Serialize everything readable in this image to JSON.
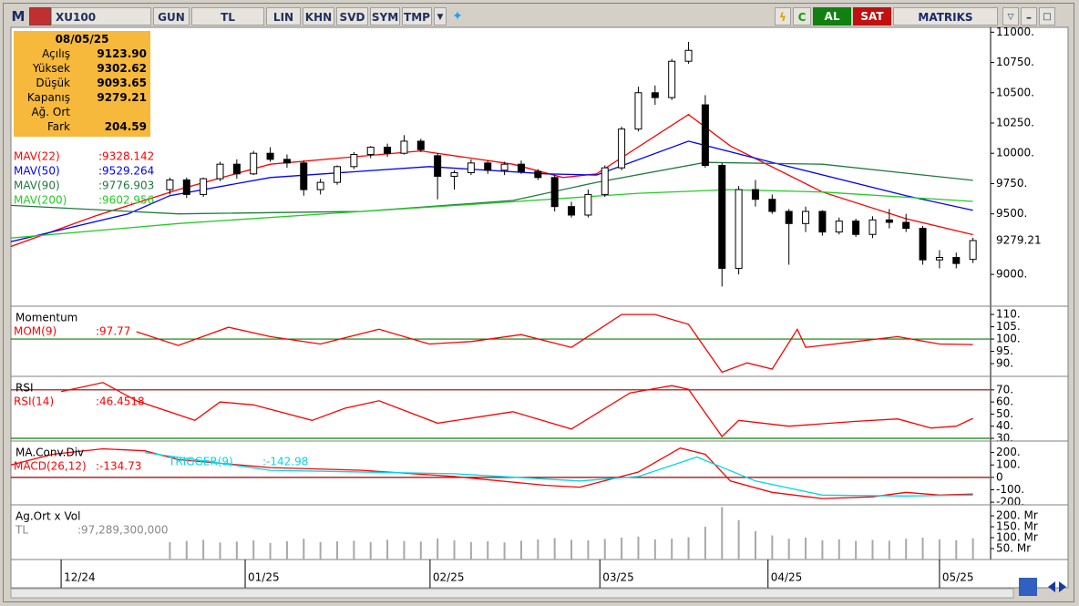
{
  "toolbar": {
    "logo": "M",
    "symbol": "XU100",
    "buttons": [
      "GUN",
      "TL",
      "LIN",
      "KHN",
      "SVD",
      "SYM",
      "TMP"
    ],
    "buy": "AL",
    "sell": "SAT",
    "brand": "MATRIKS"
  },
  "info_box": {
    "date": "08/05/25",
    "rows": [
      {
        "label": "Açılış",
        "value": "9123.90"
      },
      {
        "label": "Yüksek",
        "value": "9302.62"
      },
      {
        "label": "Düşük",
        "value": "9093.65"
      },
      {
        "label": "Kapanış",
        "value": "9279.21"
      },
      {
        "label": "Ağ. Ort"
      },
      {
        "label": "Fark",
        "value": "204.59"
      }
    ]
  },
  "chart_data": [
    {
      "type": "candlestick",
      "xlim": [
        0,
        117
      ],
      "ylim": [
        8745,
        11040
      ],
      "yticks": [
        {
          "value": 9000,
          "label": "9000."
        },
        {
          "value": 9500,
          "label": "9500."
        },
        {
          "value": 9750,
          "label": "9750."
        },
        {
          "value": 10000,
          "label": "10000."
        },
        {
          "value": 10250,
          "label": "10250."
        },
        {
          "value": 10500,
          "label": "10500."
        },
        {
          "value": 10750,
          "label": "10750."
        },
        {
          "value": 11000,
          "label": "11000."
        }
      ],
      "up_color": "#ffffff",
      "down_color": "#000000",
      "x": [
        19,
        21,
        23,
        25,
        27,
        29,
        31,
        33,
        35,
        37,
        39,
        41,
        43,
        45,
        47,
        49,
        51,
        53,
        55,
        57,
        59,
        61,
        63,
        65,
        67,
        69,
        71,
        73,
        75,
        77,
        79,
        81,
        83,
        85,
        87,
        89,
        91,
        93,
        95,
        97,
        99,
        101,
        103,
        105,
        107,
        109,
        111,
        113,
        115
      ],
      "open": [
        9700,
        9780,
        9660,
        9790,
        9910,
        9830,
        10000,
        9950,
        9920,
        9700,
        9760,
        9890,
        9990,
        10050,
        10000,
        10100,
        9980,
        9810,
        9840,
        9920,
        9860,
        9910,
        9850,
        9800,
        9560,
        9490,
        9660,
        9880,
        10200,
        10500,
        10460,
        10760,
        10400,
        9900,
        9050,
        9700,
        9620,
        9520,
        9420,
        9520,
        9350,
        9440,
        9330,
        9450,
        9430,
        9380,
        9120,
        9140,
        9123.9
      ],
      "high": [
        9800,
        9800,
        9800,
        9930,
        9950,
        10020,
        10050,
        9990,
        9940,
        9790,
        9900,
        10010,
        10060,
        10080,
        10150,
        10120,
        10000,
        9860,
        9950,
        9940,
        9930,
        9940,
        9870,
        9820,
        9600,
        9700,
        9900,
        10220,
        10550,
        10560,
        10780,
        10920,
        10480,
        9920,
        9730,
        9780,
        9660,
        9540,
        9560,
        9530,
        9470,
        9460,
        9480,
        9540,
        9500,
        9400,
        9200,
        9180,
        9302.62
      ],
      "low": [
        9660,
        9630,
        9640,
        9770,
        9790,
        9820,
        9930,
        9880,
        9650,
        9660,
        9740,
        9870,
        9960,
        9970,
        9990,
        10010,
        9620,
        9700,
        9820,
        9830,
        9820,
        9830,
        9780,
        9520,
        9470,
        9470,
        9640,
        9860,
        10180,
        10400,
        10440,
        10740,
        9880,
        8900,
        9000,
        9560,
        9500,
        9080,
        9350,
        9320,
        9330,
        9310,
        9300,
        9380,
        9350,
        9080,
        9050,
        9050,
        9093.65
      ],
      "close": [
        9780,
        9660,
        9790,
        9910,
        9830,
        10000,
        9950,
        9920,
        9700,
        9760,
        9890,
        9990,
        10050,
        10000,
        10100,
        10030,
        9810,
        9840,
        9920,
        9860,
        9910,
        9850,
        9800,
        9560,
        9490,
        9660,
        9880,
        10200,
        10500,
        10460,
        10760,
        10850,
        9900,
        9050,
        9700,
        9620,
        9520,
        9420,
        9520,
        9350,
        9440,
        9330,
        9450,
        9430,
        9380,
        9120,
        9140,
        9090,
        9279.21
      ],
      "series": [
        {
          "name": "MAV(22)",
          "legend_value": ":9328.142",
          "color": "#ff0000",
          "x": [
            0,
            10,
            20,
            31,
            49,
            60,
            66,
            70,
            81,
            86,
            97,
            107,
            115
          ],
          "values": [
            9230,
            9480,
            9700,
            9910,
            10020,
            9910,
            9800,
            9830,
            10320,
            10060,
            9680,
            9460,
            9328.142
          ]
        },
        {
          "name": "MAV(50)",
          "legend_value": ":9529.264",
          "color": "#0000ff",
          "x": [
            0,
            14,
            19,
            31,
            50,
            64,
            70,
            81,
            91,
            107,
            115
          ],
          "values": [
            9270,
            9500,
            9650,
            9800,
            9890,
            9830,
            9820,
            10100,
            9925,
            9650,
            9529.264
          ]
        },
        {
          "name": "MAV(90)",
          "legend_value": ":9776.903",
          "color": "#1e7a3c",
          "x": [
            0,
            20,
            42,
            60,
            70,
            83,
            97,
            115
          ],
          "values": [
            9570,
            9500,
            9520,
            9610,
            9760,
            9925,
            9910,
            9776.903
          ]
        },
        {
          "name": "MAV(200)",
          "legend_value": ":9602.956",
          "color": "#22cc22",
          "x": [
            0,
            20,
            42,
            60,
            75,
            86,
            97,
            115
          ],
          "values": [
            9300,
            9420,
            9520,
            9600,
            9670,
            9700,
            9680,
            9602.956
          ]
        }
      ]
    },
    {
      "type": "line",
      "title": "Momentum",
      "xlim": [
        0,
        117
      ],
      "ylim": [
        85.2,
        113
      ],
      "yticks": [
        {
          "value": 90,
          "label": "90."
        },
        {
          "value": 95,
          "label": "95."
        },
        {
          "value": 100,
          "label": "100."
        },
        {
          "value": 105,
          "label": "105."
        },
        {
          "value": 110,
          "label": "110."
        }
      ],
      "ref_lines": [
        {
          "value": 100,
          "color": "#008000"
        }
      ],
      "series": [
        {
          "name": "MOM(9)",
          "legend_value": ":97.77",
          "color": "#ff0000",
          "x": [
            15,
            20,
            26,
            31,
            37,
            44,
            50,
            55,
            61,
            67,
            73,
            77,
            81,
            85,
            88,
            91,
            94,
            95,
            101,
            106,
            111,
            115
          ],
          "values": [
            103,
            97.4,
            104.8,
            101,
            98,
            104,
            98,
            99,
            101.8,
            96.6,
            110,
            110,
            106,
            86.5,
            90.3,
            87.8,
            104,
            96.6,
            99,
            101,
            98,
            97.77
          ]
        }
      ]
    },
    {
      "type": "line",
      "title": "RSI",
      "xlim": [
        0,
        117
      ],
      "ylim": [
        28.5,
        80.4
      ],
      "yticks": [
        {
          "value": 30,
          "label": "30."
        },
        {
          "value": 40,
          "label": "40."
        },
        {
          "value": 50,
          "label": "50."
        },
        {
          "value": 60,
          "label": "60."
        },
        {
          "value": 70,
          "label": "70."
        }
      ],
      "ref_lines": [
        {
          "value": 70,
          "color": "#990000"
        },
        {
          "value": 30,
          "color": "#008000"
        }
      ],
      "series": [
        {
          "name": "RSI(14)",
          "legend_value": ":46.4518",
          "color": "#ff0000",
          "x": [
            6,
            11,
            15,
            22,
            25,
            29,
            36,
            40,
            44,
            51,
            60,
            67,
            74,
            79,
            81,
            85,
            87,
            93,
            101,
            106,
            110,
            113,
            115
          ],
          "values": [
            68.5,
            76,
            61,
            44.8,
            60,
            57.6,
            44.8,
            55,
            61,
            42.5,
            52,
            37.7,
            67.5,
            73.5,
            70.5,
            31.5,
            44.8,
            40,
            44,
            46,
            38.5,
            40,
            46.4518
          ]
        }
      ]
    },
    {
      "type": "line",
      "title": "MA.Conv.Div",
      "xlim": [
        0,
        117
      ],
      "ylim": [
        -214,
        285
      ],
      "yticks": [
        {
          "value": 200,
          "label": "200."
        },
        {
          "value": 100,
          "label": "100."
        },
        0,
        {
          "value": -100,
          "label": "-100."
        },
        {
          "value": -200,
          "label": "-200."
        }
      ],
      "ref_lines": [
        {
          "value": 0,
          "color": "#990000"
        }
      ],
      "series": [
        {
          "name": "MACD(26,12)",
          "legend_value": ":-134.73",
          "color": "#ff0000",
          "x": [
            0,
            5,
            11,
            16,
            20,
            31,
            42,
            53,
            64,
            68,
            75,
            80,
            83,
            86,
            91,
            97,
            103,
            107,
            111,
            115
          ],
          "values": [
            100,
            186,
            230,
            214,
            143,
            79,
            57,
            7,
            -64,
            -79,
            43,
            236,
            186,
            -29,
            -121,
            -171,
            -157,
            -121,
            -143,
            -134.73
          ]
        },
        {
          "name": "TRIGGER(9)",
          "legend_value": ":-142.98",
          "color": "#00d8e8",
          "x": [
            16,
            31,
            53,
            68,
            75,
            82,
            89,
            97,
            107,
            115
          ],
          "values": [
            200,
            57,
            29,
            -29,
            7,
            164,
            -29,
            -143,
            -150,
            -142.98
          ]
        }
      ]
    },
    {
      "type": "bar",
      "title": "Ag.Ort x Vol",
      "unit": "TL",
      "legend_value": ":97,289,300,000",
      "color": "#a8a8a8",
      "xlim": [
        0,
        117
      ],
      "ylim": [
        0,
        246
      ],
      "yticks": [
        {
          "value": 50,
          "label": "50. Mr"
        },
        {
          "value": 100,
          "label": "100. Mr"
        },
        {
          "value": 150,
          "label": "150. Mr"
        },
        {
          "value": 200,
          "label": "200. Mr"
        }
      ],
      "x": [
        19,
        21,
        23,
        25,
        27,
        29,
        31,
        33,
        35,
        37,
        39,
        41,
        43,
        45,
        47,
        49,
        51,
        53,
        55,
        57,
        59,
        61,
        63,
        65,
        67,
        69,
        71,
        73,
        75,
        77,
        79,
        81,
        83,
        85,
        87,
        89,
        91,
        93,
        95,
        97,
        99,
        101,
        103,
        105,
        107,
        109,
        111,
        113,
        115
      ],
      "values": [
        80,
        85,
        90,
        78,
        82,
        88,
        76,
        84,
        95,
        80,
        83,
        86,
        79,
        90,
        85,
        82,
        96,
        88,
        80,
        84,
        78,
        86,
        92,
        98,
        90,
        88,
        94,
        100,
        105,
        92,
        96,
        102,
        150,
        240,
        180,
        130,
        110,
        95,
        100,
        88,
        92,
        85,
        90,
        86,
        95,
        100,
        92,
        88,
        97.2893
      ],
      "xticks": [
        {
          "value": 6,
          "label": "12/24"
        },
        {
          "value": 28,
          "label": "01/25"
        },
        {
          "value": 50.1,
          "label": "02/25"
        },
        {
          "value": 70.4,
          "label": "03/25"
        },
        {
          "value": 90.5,
          "label": "04/25"
        },
        {
          "value": 111,
          "label": "05/25"
        }
      ]
    }
  ]
}
